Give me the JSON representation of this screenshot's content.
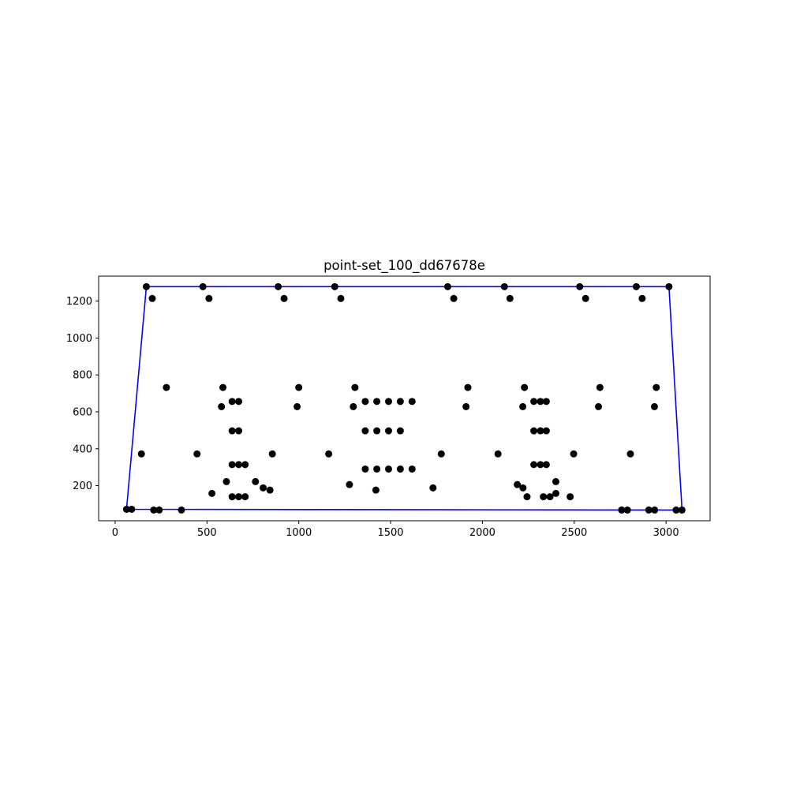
{
  "chart_data": {
    "type": "scatter",
    "title": "point-set_100_dd67678e",
    "xlabel": "",
    "ylabel": "",
    "xlim": [
      -90,
      3240
    ],
    "ylim": [
      10,
      1335
    ],
    "xticks": [
      0,
      500,
      1000,
      1500,
      2000,
      2500,
      3000
    ],
    "xtick_labels": [
      "0",
      "500",
      "1000",
      "1500",
      "2000",
      "2500",
      "3000"
    ],
    "yticks": [
      200,
      400,
      600,
      800,
      1000,
      1200
    ],
    "ytick_labels": [
      "200",
      "400",
      "600",
      "800",
      "1000",
      "1200"
    ],
    "grid": false,
    "legend": "none",
    "colors": {
      "points": "#000000",
      "hull": "#0000ff",
      "axes": "#000000",
      "background": "#ffffff"
    },
    "points": [
      [
        170,
        1278
      ],
      [
        478,
        1278
      ],
      [
        888,
        1278
      ],
      [
        1196,
        1278
      ],
      [
        1811,
        1278
      ],
      [
        2120,
        1278
      ],
      [
        2530,
        1278
      ],
      [
        2838,
        1278
      ],
      [
        3016,
        1278
      ],
      [
        202,
        1214
      ],
      [
        511,
        1214
      ],
      [
        920,
        1214
      ],
      [
        1229,
        1214
      ],
      [
        1844,
        1214
      ],
      [
        2150,
        1214
      ],
      [
        2562,
        1214
      ],
      [
        2870,
        1214
      ],
      [
        279,
        732
      ],
      [
        587,
        732
      ],
      [
        1000,
        732
      ],
      [
        1306,
        732
      ],
      [
        1921,
        732
      ],
      [
        2229,
        732
      ],
      [
        2640,
        732
      ],
      [
        2947,
        732
      ],
      [
        579,
        628
      ],
      [
        991,
        628
      ],
      [
        1297,
        628
      ],
      [
        1911,
        628
      ],
      [
        2220,
        628
      ],
      [
        2632,
        628
      ],
      [
        2937,
        628
      ],
      [
        637,
        656
      ],
      [
        673,
        656
      ],
      [
        1362,
        656
      ],
      [
        1425,
        656
      ],
      [
        1489,
        656
      ],
      [
        1553,
        656
      ],
      [
        1617,
        656
      ],
      [
        2280,
        656
      ],
      [
        2316,
        656
      ],
      [
        2348,
        656
      ],
      [
        637,
        497
      ],
      [
        673,
        497
      ],
      [
        1362,
        497
      ],
      [
        1425,
        497
      ],
      [
        1489,
        497
      ],
      [
        1553,
        497
      ],
      [
        2280,
        497
      ],
      [
        2316,
        497
      ],
      [
        2348,
        497
      ],
      [
        143,
        372
      ],
      [
        446,
        372
      ],
      [
        856,
        372
      ],
      [
        1163,
        372
      ],
      [
        1776,
        372
      ],
      [
        2085,
        372
      ],
      [
        2497,
        372
      ],
      [
        2806,
        372
      ],
      [
        637,
        314
      ],
      [
        673,
        314
      ],
      [
        708,
        314
      ],
      [
        2280,
        314
      ],
      [
        2316,
        314
      ],
      [
        2348,
        314
      ],
      [
        1362,
        290
      ],
      [
        1425,
        290
      ],
      [
        1489,
        290
      ],
      [
        1553,
        290
      ],
      [
        1617,
        290
      ],
      [
        606,
        222
      ],
      [
        764,
        222
      ],
      [
        2400,
        222
      ],
      [
        1276,
        206
      ],
      [
        2190,
        206
      ],
      [
        806,
        188
      ],
      [
        1731,
        188
      ],
      [
        2221,
        188
      ],
      [
        843,
        176
      ],
      [
        1420,
        176
      ],
      [
        527,
        158
      ],
      [
        2400,
        158
      ],
      [
        637,
        140
      ],
      [
        673,
        140
      ],
      [
        708,
        140
      ],
      [
        2243,
        140
      ],
      [
        2332,
        140
      ],
      [
        2368,
        140
      ],
      [
        2478,
        140
      ],
      [
        62,
        72
      ],
      [
        90,
        72
      ],
      [
        210,
        68
      ],
      [
        240,
        68
      ],
      [
        361,
        68
      ],
      [
        2758,
        68
      ],
      [
        2790,
        68
      ],
      [
        2906,
        68
      ],
      [
        2938,
        68
      ],
      [
        3055,
        68
      ],
      [
        3087,
        68
      ]
    ],
    "hull": [
      [
        62,
        72
      ],
      [
        170,
        1278
      ],
      [
        3016,
        1278
      ],
      [
        3087,
        68
      ],
      [
        62,
        72
      ]
    ]
  }
}
